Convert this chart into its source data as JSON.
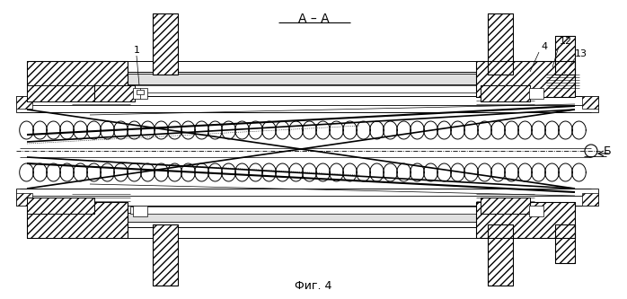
{
  "title": "А – А",
  "subtitle": "Фиг. 4",
  "bg_color": "#ffffff",
  "line_color": "#000000",
  "label_fontsize": 8,
  "title_fontsize": 10,
  "subtitle_fontsize": 9,
  "fig_w": 6.98,
  "fig_h": 3.33,
  "dpi": 100
}
